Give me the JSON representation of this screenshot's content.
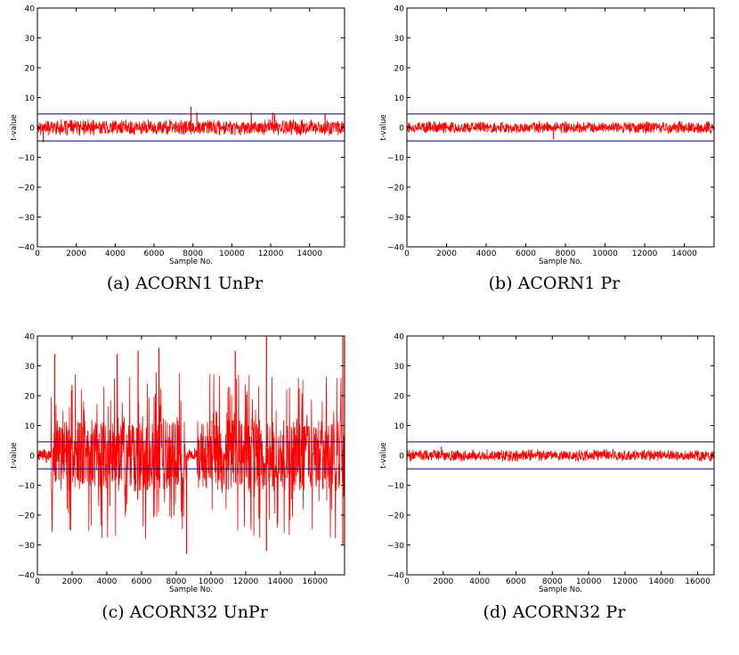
{
  "threshold_color": "#000080",
  "trace_color": "#ff0000",
  "chart_data": [
    {
      "type": "line",
      "caption": "(a) ACORN1 UnPr",
      "xlabel": "Sample No.",
      "ylabel": "t-value",
      "xlim": [
        0,
        15800
      ],
      "ylim": [
        -40,
        40
      ],
      "xticks": [
        0,
        2000,
        4000,
        6000,
        8000,
        10000,
        12000,
        14000
      ],
      "yticks": [
        -40,
        -30,
        -20,
        -10,
        0,
        10,
        20,
        30,
        40
      ],
      "thresholds": [
        4.5,
        -4.5
      ],
      "noise": {
        "typical": 3.0,
        "spikes": [
          [
            300,
            -5
          ],
          [
            7900,
            7
          ],
          [
            8200,
            5
          ],
          [
            11000,
            5
          ],
          [
            12100,
            5
          ],
          [
            12200,
            4.5
          ],
          [
            14800,
            4.5
          ]
        ]
      }
    },
    {
      "type": "line",
      "caption": "(b) ACORN1 Pr",
      "xlabel": "Sample No.",
      "ylabel": "t-value",
      "xlim": [
        0,
        15500
      ],
      "ylim": [
        -40,
        40
      ],
      "xticks": [
        0,
        2000,
        4000,
        6000,
        8000,
        10000,
        12000,
        14000
      ],
      "yticks": [
        -40,
        -30,
        -20,
        -10,
        0,
        10,
        20,
        30,
        40
      ],
      "thresholds": [
        4.5,
        -4.5
      ],
      "noise": {
        "typical": 2.3,
        "spikes": [
          [
            7400,
            -4
          ]
        ]
      }
    },
    {
      "type": "line",
      "caption": "(c) ACORN32 UnPr",
      "xlabel": "Sample No.",
      "ylabel": "t-value",
      "xlim": [
        0,
        17700
      ],
      "ylim": [
        -40,
        40
      ],
      "xticks": [
        0,
        2000,
        4000,
        6000,
        8000,
        10000,
        12000,
        14000,
        16000
      ],
      "yticks": [
        -40,
        -30,
        -20,
        -10,
        0,
        10,
        20,
        30,
        40
      ],
      "thresholds": [
        4.5,
        -4.5
      ],
      "noise": {
        "typical": 3.0,
        "bursts": [
          [
            800,
            8600
          ],
          [
            9200,
            17700
          ]
        ],
        "burst_amp": 28,
        "spikes": [
          [
            1000,
            34
          ],
          [
            4600,
            34
          ],
          [
            5800,
            35
          ],
          [
            7000,
            36
          ],
          [
            8600,
            -33
          ],
          [
            11400,
            35
          ],
          [
            13200,
            40
          ],
          [
            13200,
            -32
          ],
          [
            17600,
            40
          ],
          [
            17600,
            -30
          ]
        ]
      }
    },
    {
      "type": "line",
      "caption": "(d) ACORN32 Pr",
      "xlabel": "Sample No.",
      "ylabel": "t-value",
      "xlim": [
        0,
        16900
      ],
      "ylim": [
        -40,
        40
      ],
      "xticks": [
        0,
        2000,
        4000,
        6000,
        8000,
        10000,
        12000,
        14000,
        16000
      ],
      "yticks": [
        -40,
        -30,
        -20,
        -10,
        0,
        10,
        20,
        30,
        40
      ],
      "thresholds": [
        4.5,
        -4.5
      ],
      "noise": {
        "typical": 2.2,
        "spikes": [
          [
            1900,
            3
          ]
        ]
      }
    }
  ]
}
